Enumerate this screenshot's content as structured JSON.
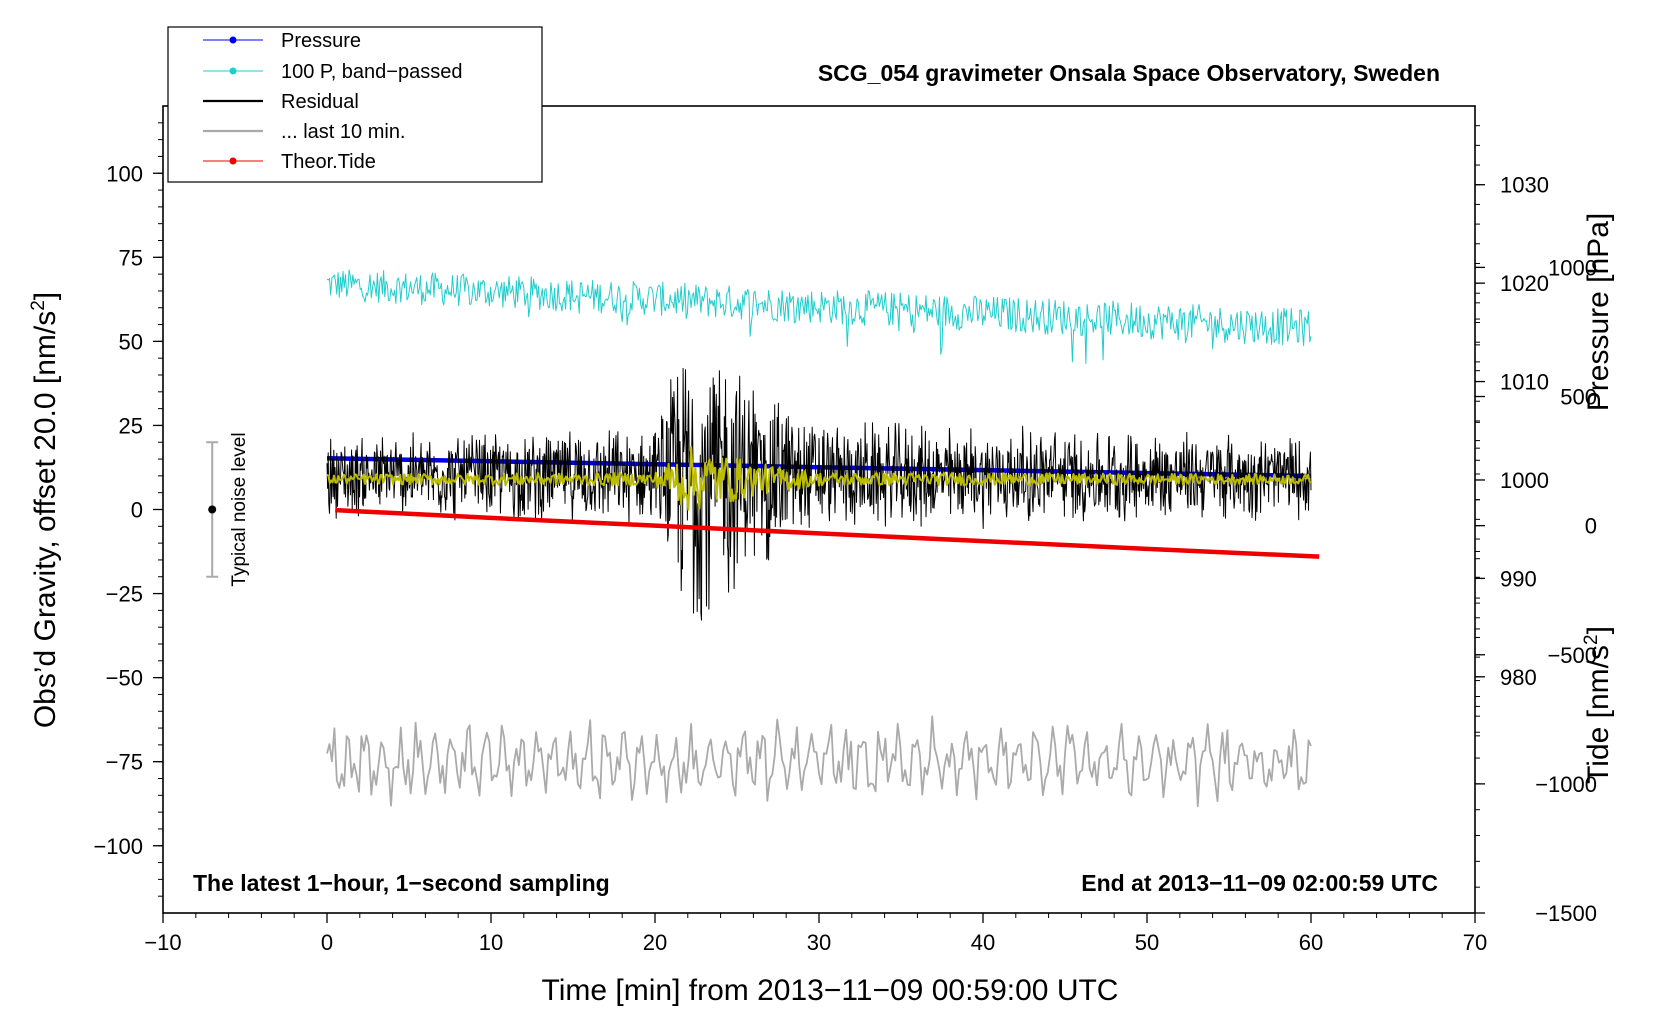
{
  "chart_data": {
    "type": "line",
    "title": "SCG_054 gravimeter Onsala Space Observatory, Sweden",
    "xlabel": "Time [min] from 2013−11−09 00:59:00 UTC",
    "ylabel": "Obs’d Gravity, offset 20.0 [nm/s",
    "ylabel_sup": "2",
    "ylabel_close": "]",
    "y2_pressure_label": "Pressure [hPa]",
    "y2_tide_label": "Tide [nm/s",
    "y2_tide_sup": "2",
    "y2_tide_close": "]",
    "xlim": [
      -10,
      70
    ],
    "ylim": [
      -120,
      120
    ],
    "x_ticks": [
      -10,
      0,
      10,
      20,
      30,
      40,
      50,
      60,
      70
    ],
    "x_tick_labels": [
      "−10",
      "0",
      "10",
      "20",
      "30",
      "40",
      "50",
      "60",
      "70"
    ],
    "y_ticks": [
      100,
      75,
      50,
      25,
      0,
      -25,
      -50,
      -75,
      -100
    ],
    "y_tick_labels": [
      "100",
      "75",
      "50",
      "25",
      "0",
      "−25",
      "−50",
      "−75",
      "−100"
    ],
    "pressure_axis": {
      "range": [
        956,
        1038
      ],
      "ticks": [
        1030,
        1020,
        1010,
        1000,
        990,
        980
      ],
      "tick_labels": [
        "1030",
        "1020",
        "1010",
        "1000",
        "990",
        "980"
      ]
    },
    "tide_axis": {
      "range": [
        -1500,
        1625
      ],
      "ticks": [
        1000,
        500,
        0,
        -500,
        -1000,
        -1500
      ],
      "tick_labels": [
        "1000",
        "500",
        "0",
        "−500",
        "−1000",
        "−1500"
      ]
    },
    "annotation_left": "The latest 1−hour, 1−second sampling",
    "annotation_right": "End at 2013−11−09 02:00:59 UTC",
    "noise_marker": {
      "label": "Typical noise level",
      "x": -7,
      "center": 0,
      "range": [
        -20,
        20
      ]
    },
    "legend": [
      {
        "label": "Pressure",
        "color": "#0000ee",
        "style": "line-dot"
      },
      {
        "label": "100 P, band−passed",
        "color": "#22cccc",
        "style": "line-dot"
      },
      {
        "label": "Residual",
        "color": "#000000",
        "style": "line"
      },
      {
        "label": "... last 10 min.",
        "color": "#aaaaaa",
        "style": "line"
      },
      {
        "label": "Theor.Tide",
        "color": "#ee0000",
        "style": "line-dot"
      }
    ],
    "series": [
      {
        "name": "Pressure",
        "axis": "pressure",
        "color": "#0000ee",
        "x": [
          0,
          10,
          20,
          30,
          40,
          50,
          60
        ],
        "values": [
          1002.2,
          1001.9,
          1001.6,
          1001.3,
          1001.0,
          1000.7,
          1000.4
        ]
      },
      {
        "name": "100 P, band−passed",
        "axis": "gravity",
        "color": "#22cccc",
        "x": [
          0,
          60
        ],
        "values": [
          67,
          54
        ],
        "amplitude": [
          6,
          7
        ]
      },
      {
        "name": "Residual",
        "axis": "gravity",
        "color": "#000000",
        "x": [
          0,
          20,
          22,
          23,
          24,
          26,
          30,
          60
        ],
        "values": [
          10,
          10,
          10,
          10,
          10,
          10,
          10,
          10
        ],
        "amplitude": [
          12,
          14,
          45,
          50,
          38,
          30,
          16,
          12
        ]
      },
      {
        "name": "Residual smoothed",
        "axis": "gravity",
        "color": "#bbbb00",
        "x": [
          0,
          20,
          22,
          24,
          26,
          30,
          60
        ],
        "values": [
          9,
          9,
          9,
          9,
          9,
          9,
          9
        ],
        "amplitude": [
          1.5,
          2,
          10,
          8,
          5,
          2,
          1.5
        ]
      },
      {
        "name": "... last 10 min.",
        "axis": "gravity",
        "color": "#aaaaaa",
        "x": [
          0,
          60
        ],
        "values": [
          -75,
          -75
        ],
        "amplitude": [
          11,
          11
        ]
      },
      {
        "name": "Theor.Tide",
        "axis": "tide",
        "color": "#ee0000",
        "x": [
          0.5,
          10,
          20,
          30,
          40,
          50,
          60.5
        ],
        "values": [
          60,
          30,
          0,
          -30,
          -60,
          -90,
          -120
        ]
      }
    ]
  }
}
